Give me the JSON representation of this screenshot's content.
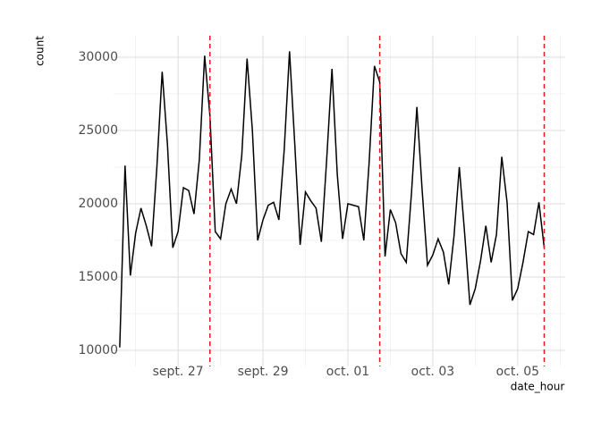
{
  "chart_data": {
    "type": "line",
    "x_label": "date_hour",
    "y_label": "count",
    "x": [
      25.625,
      25.75,
      25.875,
      26,
      26.125,
      26.25,
      26.375,
      26.5,
      26.625,
      26.75,
      26.875,
      27,
      27.125,
      27.25,
      27.375,
      27.5,
      27.625,
      27.75,
      27.875,
      28,
      28.125,
      28.25,
      28.375,
      28.5,
      28.625,
      28.75,
      28.875,
      29,
      29.125,
      29.25,
      29.375,
      29.5,
      29.625,
      29.75,
      29.875,
      30,
      30.125,
      30.25,
      30.375,
      30.5,
      30.625,
      30.75,
      30.875,
      31,
      31.125,
      31.25,
      31.375,
      31.5,
      31.625,
      31.75,
      31.875,
      32,
      32.125,
      32.25,
      32.375,
      32.5,
      32.625,
      32.75,
      32.875,
      33,
      33.125,
      33.25,
      33.375,
      33.5,
      33.625,
      33.75,
      33.875,
      34,
      34.125,
      34.25,
      34.375,
      34.5,
      34.625,
      34.75,
      34.875,
      35,
      35.125,
      35.25,
      35.375,
      35.5,
      35.625
    ],
    "series": [
      {
        "color": "#000000",
        "values": [
          10200,
          22600,
          15100,
          18000,
          19700,
          18500,
          17100,
          22500,
          29000,
          24000,
          17000,
          18100,
          21100,
          20900,
          19300,
          23000,
          30100,
          26000,
          18100,
          17600,
          20000,
          21000,
          20000,
          23300,
          29900,
          25000,
          17500,
          18900,
          19900,
          20100,
          18900,
          23700,
          30400,
          24000,
          17200,
          20800,
          20200,
          19700,
          17400,
          23000,
          29200,
          22000,
          17600,
          20000,
          19900,
          19800,
          17500,
          22800,
          29400,
          28300,
          16400,
          19600,
          18700,
          16600,
          16000,
          20800,
          26600,
          20900,
          15800,
          16500,
          17600,
          16700,
          14500,
          17800,
          22500,
          18000,
          13100,
          14200,
          16100,
          18500,
          16000,
          17900,
          23200,
          20100,
          13400,
          14200,
          16000,
          18100,
          17900,
          20100,
          17000
        ]
      }
    ],
    "vlines": [
      27.75,
      31.75,
      35.625
    ],
    "vline_color": "#e31a1c",
    "xlim": [
      25.48,
      36.12
    ],
    "xticks": [
      {
        "value": 27,
        "label": "sept. 27"
      },
      {
        "value": 29,
        "label": "sept. 29"
      },
      {
        "value": 31,
        "label": "oct. 01"
      },
      {
        "value": 33,
        "label": "oct. 03"
      },
      {
        "value": 35,
        "label": "oct. 05"
      }
    ],
    "minor_xticks": [
      26,
      28,
      30,
      32,
      34,
      36
    ],
    "ylim": [
      8900,
      31460
    ],
    "yticks": [
      10000,
      15000,
      20000,
      25000,
      30000
    ],
    "minor_yticks": [
      12500,
      17500,
      22500,
      27500
    ],
    "grid": true
  }
}
